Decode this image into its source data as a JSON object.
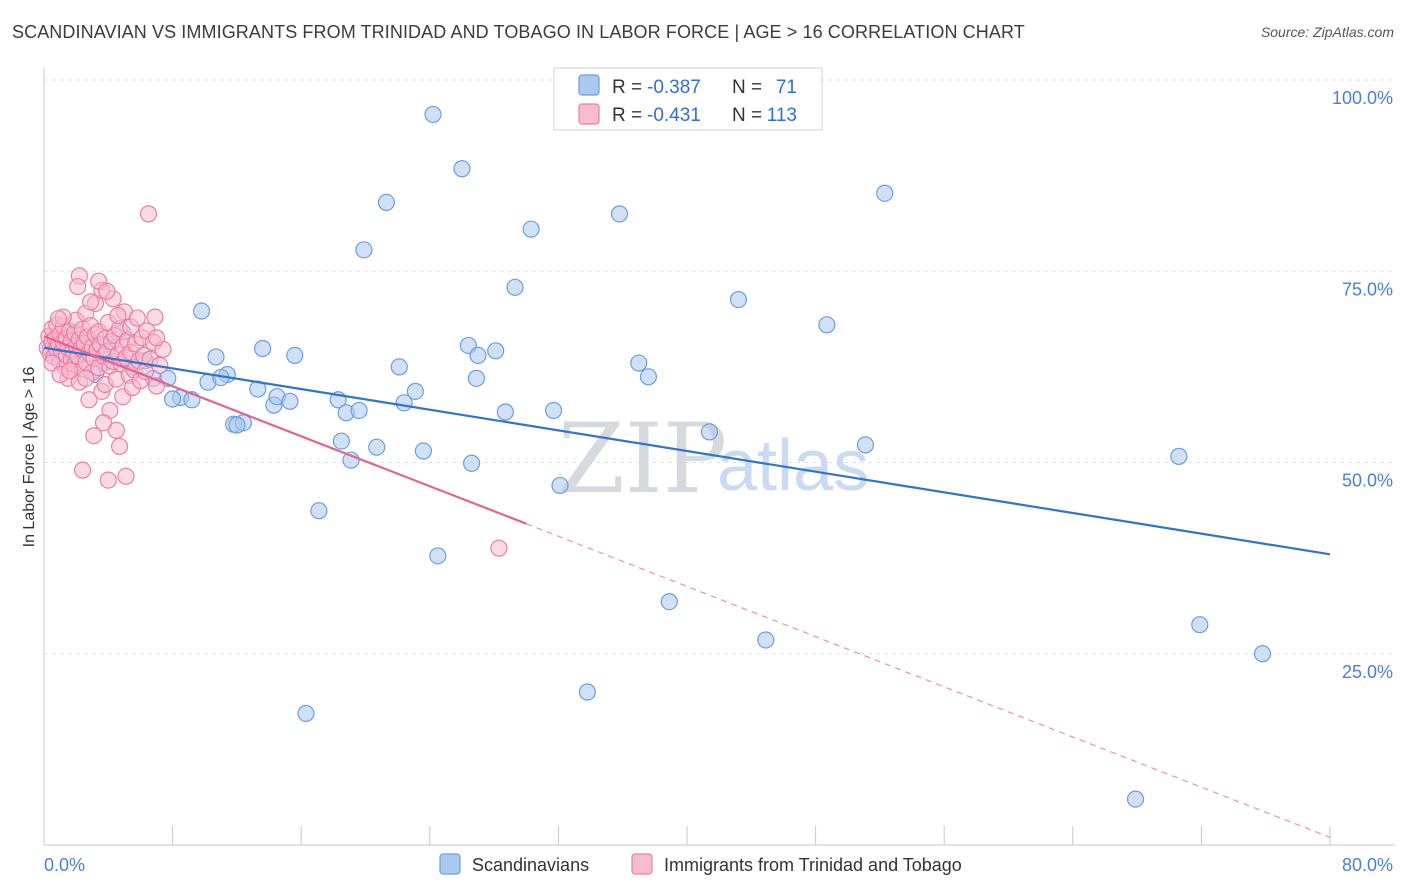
{
  "header": {
    "title": "SCANDINAVIAN VS IMMIGRANTS FROM TRINIDAD AND TOBAGO IN LABOR FORCE | AGE > 16 CORRELATION CHART",
    "source": "Source: ZipAtlas.com"
  },
  "watermark": {
    "zip": "ZIP",
    "atlas": "atlas"
  },
  "legend_box": {
    "rows": [
      {
        "r_label": "R =",
        "r_value": "-0.387",
        "n_label": "N =",
        "n_value": "71",
        "color": "#aac8f0",
        "stroke": "#6a9ee0"
      },
      {
        "r_label": "R =",
        "r_value": "-0.431",
        "n_label": "N =",
        "n_value": "113",
        "color": "#f7bcd0",
        "stroke": "#ea7fa3"
      }
    ]
  },
  "chart_data": {
    "type": "scatter",
    "title": "SCANDINAVIAN VS IMMIGRANTS FROM TRINIDAD AND TOBAGO IN LABOR FORCE | AGE > 16 CORRELATION CHART",
    "xlabel": "",
    "ylabel": "In Labor Force | Age > 16",
    "xlim": [
      0,
      80
    ],
    "ylim": [
      0,
      100
    ],
    "x_tick_labels": {
      "min": "0.0%",
      "max": "80.0%"
    },
    "y_ticks": [
      {
        "value": 25,
        "label": "25.0%"
      },
      {
        "value": 50,
        "label": "50.0%"
      },
      {
        "value": 75,
        "label": "75.0%"
      },
      {
        "value": 100,
        "label": "100.0%"
      }
    ],
    "grid": true,
    "legend_position": "bottom",
    "series": [
      {
        "name": "Scandinavians",
        "color": "#aac8f0",
        "stroke": "#6a9ee0",
        "trend_color": "#2f74d0",
        "trend": {
          "x0": 0,
          "y0": 65,
          "x1": 80,
          "y1": 38
        },
        "points": [
          [
            0.4,
            65.0
          ],
          [
            1.3,
            67.3
          ],
          [
            2.8,
            65.3
          ],
          [
            4.9,
            67.0
          ],
          [
            2.0,
            63.5
          ],
          [
            3.2,
            61.5
          ],
          [
            5.5,
            62.5
          ],
          [
            3.7,
            63.0
          ],
          [
            6.8,
            61.0
          ],
          [
            9.8,
            69.8
          ],
          [
            10.2,
            60.5
          ],
          [
            10.7,
            63.8
          ],
          [
            11.4,
            61.5
          ],
          [
            8.5,
            58.5
          ],
          [
            9.2,
            58.2
          ],
          [
            8.0,
            58.3
          ],
          [
            13.6,
            64.9
          ],
          [
            15.6,
            64.0
          ],
          [
            13.3,
            59.6
          ],
          [
            14.3,
            57.5
          ],
          [
            14.5,
            58.6
          ],
          [
            15.3,
            58.0
          ],
          [
            11.8,
            55.0
          ],
          [
            12.4,
            55.2
          ],
          [
            12.0,
            54.9
          ],
          [
            18.3,
            58.2
          ],
          [
            18.8,
            56.5
          ],
          [
            19.6,
            56.8
          ],
          [
            22.1,
            62.5
          ],
          [
            22.4,
            57.8
          ],
          [
            23.1,
            59.3
          ],
          [
            17.1,
            43.7
          ],
          [
            16.3,
            17.2
          ],
          [
            18.5,
            52.8
          ],
          [
            19.1,
            50.3
          ],
          [
            20.7,
            52.0
          ],
          [
            23.6,
            51.5
          ],
          [
            26.4,
            65.3
          ],
          [
            26.9,
            61.0
          ],
          [
            26.6,
            49.9
          ],
          [
            28.1,
            64.6
          ],
          [
            29.3,
            72.9
          ],
          [
            28.7,
            56.6
          ],
          [
            24.2,
            95.5
          ],
          [
            26.0,
            88.4
          ],
          [
            19.9,
            77.8
          ],
          [
            21.3,
            84.0
          ],
          [
            30.3,
            80.5
          ],
          [
            35.8,
            82.5
          ],
          [
            31.7,
            56.8
          ],
          [
            32.1,
            47.0
          ],
          [
            33.8,
            20.0
          ],
          [
            24.5,
            37.8
          ],
          [
            37.6,
            61.2
          ],
          [
            38.9,
            31.8
          ],
          [
            41.4,
            54.0
          ],
          [
            43.2,
            71.3
          ],
          [
            44.9,
            26.8
          ],
          [
            48.7,
            68.0
          ],
          [
            51.1,
            52.3
          ],
          [
            52.3,
            85.2
          ],
          [
            70.6,
            50.8
          ],
          [
            71.9,
            28.8
          ],
          [
            75.8,
            25.0
          ],
          [
            67.9,
            6.0
          ],
          [
            4.0,
            65.5
          ],
          [
            6.3,
            63.3
          ],
          [
            7.7,
            61.0
          ],
          [
            11.0,
            61.1
          ],
          [
            27.0,
            64.0
          ],
          [
            37.0,
            63.0
          ]
        ]
      },
      {
        "name": "Immigrants from Trinidad and Tobago",
        "color": "#f7bcd0",
        "stroke": "#ea7fa3",
        "trend_color": "#e0648f",
        "trend": {
          "x0": 0,
          "y0": 66.5,
          "x1": 30,
          "y1": 42,
          "x_dash_end": 80,
          "y_dash_end": 1
        },
        "points": [
          [
            0.2,
            65.0
          ],
          [
            0.3,
            66.5
          ],
          [
            0.4,
            64.2
          ],
          [
            0.5,
            67.5
          ],
          [
            0.5,
            65.8
          ],
          [
            0.6,
            63.8
          ],
          [
            0.7,
            66.2
          ],
          [
            0.8,
            64.8
          ],
          [
            0.8,
            68.0
          ],
          [
            0.9,
            65.5
          ],
          [
            1.0,
            63.2
          ],
          [
            1.0,
            66.8
          ],
          [
            1.1,
            64.5
          ],
          [
            1.2,
            65.7
          ],
          [
            1.2,
            67.8
          ],
          [
            1.3,
            62.5
          ],
          [
            1.4,
            64.0
          ],
          [
            1.4,
            66.3
          ],
          [
            1.5,
            65.0
          ],
          [
            1.5,
            61.0
          ],
          [
            1.6,
            67.2
          ],
          [
            1.7,
            63.5
          ],
          [
            1.7,
            65.9
          ],
          [
            1.8,
            64.6
          ],
          [
            1.9,
            66.9
          ],
          [
            1.9,
            62.8
          ],
          [
            2.0,
            65.3
          ],
          [
            2.0,
            68.6
          ],
          [
            2.1,
            63.9
          ],
          [
            2.2,
            66.1
          ],
          [
            2.2,
            60.5
          ],
          [
            2.3,
            64.9
          ],
          [
            2.4,
            67.4
          ],
          [
            2.4,
            62.2
          ],
          [
            2.5,
            65.6
          ],
          [
            2.6,
            63.1
          ],
          [
            2.6,
            69.5
          ],
          [
            2.7,
            66.4
          ],
          [
            2.8,
            64.3
          ],
          [
            2.8,
            58.2
          ],
          [
            2.9,
            67.9
          ],
          [
            3.0,
            65.1
          ],
          [
            3.0,
            61.8
          ],
          [
            3.1,
            63.6
          ],
          [
            3.2,
            66.7
          ],
          [
            3.2,
            70.8
          ],
          [
            3.3,
            64.7
          ],
          [
            3.4,
            62.4
          ],
          [
            3.4,
            67.1
          ],
          [
            3.5,
            65.4
          ],
          [
            3.6,
            59.3
          ],
          [
            3.6,
            72.5
          ],
          [
            3.7,
            63.9
          ],
          [
            3.8,
            66.2
          ],
          [
            3.8,
            60.2
          ],
          [
            3.9,
            64.5
          ],
          [
            4.0,
            68.3
          ],
          [
            4.1,
            62.6
          ],
          [
            4.1,
            56.8
          ],
          [
            4.2,
            65.8
          ],
          [
            4.3,
            63.2
          ],
          [
            4.3,
            71.4
          ],
          [
            4.4,
            66.6
          ],
          [
            4.5,
            60.9
          ],
          [
            4.5,
            54.2
          ],
          [
            4.6,
            64.1
          ],
          [
            4.7,
            67.5
          ],
          [
            4.7,
            52.1
          ],
          [
            4.8,
            62.9
          ],
          [
            4.9,
            65.2
          ],
          [
            4.9,
            58.6
          ],
          [
            5.0,
            69.7
          ],
          [
            5.1,
            63.7
          ],
          [
            5.1,
            48.2
          ],
          [
            5.2,
            66.0
          ],
          [
            5.3,
            61.4
          ],
          [
            5.4,
            64.4
          ],
          [
            5.4,
            67.7
          ],
          [
            5.5,
            59.8
          ],
          [
            5.6,
            62.1
          ],
          [
            5.7,
            65.5
          ],
          [
            5.8,
            68.9
          ],
          [
            5.9,
            63.3
          ],
          [
            6.0,
            60.7
          ],
          [
            6.1,
            66.3
          ],
          [
            6.2,
            64.0
          ],
          [
            6.3,
            61.9
          ],
          [
            6.4,
            67.2
          ],
          [
            6.5,
            82.5
          ],
          [
            6.6,
            63.5
          ],
          [
            6.8,
            65.7
          ],
          [
            7.0,
            60.0
          ],
          [
            7.2,
            62.7
          ],
          [
            7.4,
            64.8
          ],
          [
            7.0,
            66.3
          ],
          [
            2.2,
            74.4
          ],
          [
            3.4,
            73.7
          ],
          [
            3.9,
            72.4
          ],
          [
            2.1,
            73.0
          ],
          [
            2.9,
            71.0
          ],
          [
            1.2,
            69.0
          ],
          [
            4.6,
            69.2
          ],
          [
            3.7,
            55.2
          ],
          [
            3.1,
            53.5
          ],
          [
            2.4,
            49.0
          ],
          [
            4.0,
            47.7
          ],
          [
            0.5,
            63.0
          ],
          [
            1.0,
            61.5
          ],
          [
            1.6,
            62.0
          ],
          [
            0.9,
            68.8
          ],
          [
            28.3,
            38.8
          ],
          [
            6.9,
            69.0
          ],
          [
            2.6,
            61.0
          ]
        ]
      }
    ]
  }
}
